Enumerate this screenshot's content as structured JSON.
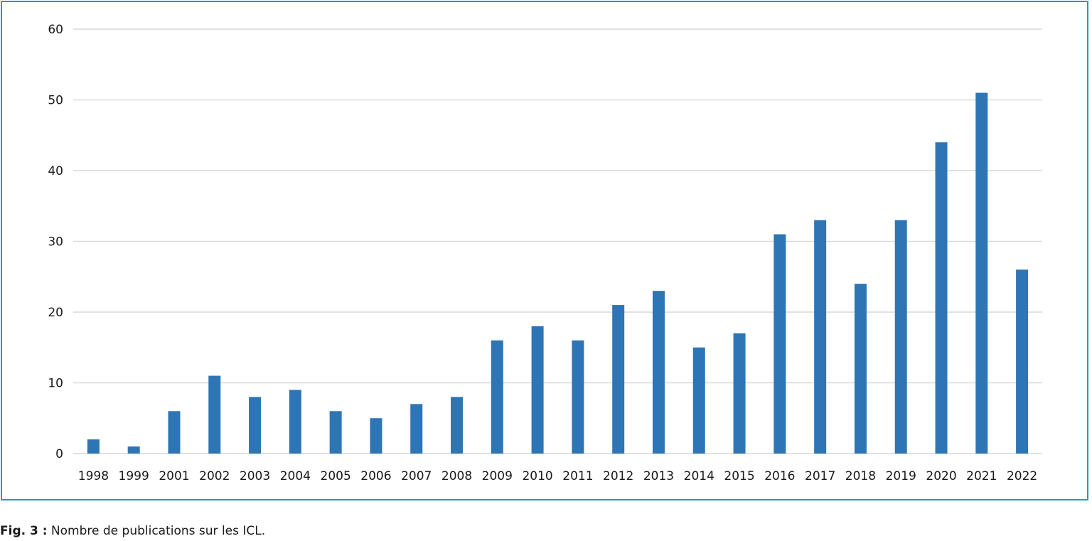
{
  "chart_data": {
    "type": "bar",
    "title": "",
    "xlabel": "",
    "ylabel": "",
    "categories": [
      "1998",
      "1999",
      "2001",
      "2002",
      "2003",
      "2004",
      "2005",
      "2006",
      "2007",
      "2008",
      "2009",
      "2010",
      "2011",
      "2012",
      "2013",
      "2014",
      "2015",
      "2016",
      "2017",
      "2018",
      "2019",
      "2020",
      "2021",
      "2022"
    ],
    "values": [
      2,
      1,
      6,
      11,
      8,
      9,
      6,
      5,
      7,
      8,
      16,
      18,
      16,
      21,
      23,
      15,
      17,
      31,
      33,
      24,
      33,
      44,
      51,
      26
    ],
    "ylim": [
      0,
      60
    ],
    "yticks": [
      0,
      10,
      20,
      30,
      40,
      50,
      60
    ],
    "grid": true,
    "legend": "none",
    "bar_color": "#2e75b6",
    "grid_color": "#d9d9d9",
    "frame_color": "#1a9ad6"
  },
  "caption": {
    "label": "Fig. 3 :",
    "text": " Nombre de publications sur les ICL."
  }
}
